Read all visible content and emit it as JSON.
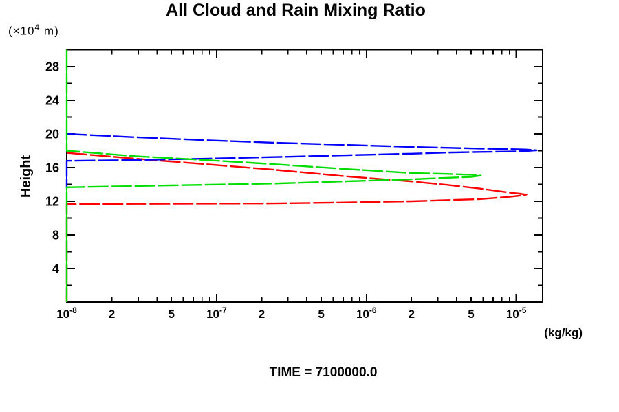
{
  "page": {
    "background": "#ffffff"
  },
  "chart_data": {
    "type": "line",
    "title": "All Cloud and Rain Mixing Ratio",
    "caption": "TIME = 7100000.0",
    "grid": false,
    "legend": false,
    "x_axis": {
      "scale": "log",
      "min": 1e-08,
      "max": 1.5e-05,
      "unit_label": "(kg/kg)",
      "major_ticks": [
        {
          "value": 1e-08,
          "label_base": "10",
          "label_exp": "-8"
        },
        {
          "value": 1e-07,
          "label_base": "10",
          "label_exp": "-7"
        },
        {
          "value": 1e-06,
          "label_base": "10",
          "label_exp": "-6"
        },
        {
          "value": 1e-05,
          "label_base": "10",
          "label_exp": "-5"
        }
      ],
      "minor_multipliers": [
        2,
        3,
        4,
        5,
        6,
        7,
        8,
        9
      ],
      "labeled_minor_multipliers": [
        2,
        5
      ]
    },
    "y_axis": {
      "label": "Height",
      "unit_prefix": "(×10",
      "unit_exp": "4",
      "unit_suffix": " m)",
      "min": 0,
      "max": 30,
      "tick_step": 2,
      "label_step": 4,
      "tick_labels": [
        4,
        8,
        12,
        16,
        20,
        24,
        28
      ]
    },
    "series": [
      {
        "name": "red-profile",
        "color": "#ff0000",
        "peak_value": 1.17e-05,
        "peak_height": 12.8,
        "points": [
          [
            1e-08,
            17.75
          ],
          [
            2.9e-08,
            17.05
          ],
          [
            8.4e-08,
            16.4
          ],
          [
            2.4e-07,
            15.75
          ],
          [
            6.9e-07,
            15.0
          ],
          [
            2e-06,
            14.35
          ],
          [
            3.4e-06,
            13.95
          ],
          [
            5.7e-06,
            13.5
          ],
          [
            8.7e-06,
            13.05
          ],
          [
            1.05e-05,
            12.9
          ],
          [
            1.17e-05,
            12.78
          ],
          [
            1.05e-05,
            12.65
          ],
          [
            8.7e-06,
            12.5
          ],
          [
            5.7e-06,
            12.25
          ],
          [
            2e-06,
            12.0
          ],
          [
            6.9e-07,
            11.85
          ],
          [
            2.4e-07,
            11.75
          ],
          [
            8.4e-08,
            11.72
          ],
          [
            2.9e-08,
            11.7
          ],
          [
            1e-08,
            11.67
          ],
          [
            1e-08,
            0.0
          ]
        ]
      },
      {
        "name": "blue-profile",
        "color": "#0000ff",
        "peak_value": 1.37e-05,
        "peak_height": 18.05,
        "points": [
          [
            1e-08,
            20.0
          ],
          [
            2.9e-08,
            19.6
          ],
          [
            8.4e-08,
            19.25
          ],
          [
            2.4e-07,
            18.95
          ],
          [
            6.9e-07,
            18.7
          ],
          [
            2e-06,
            18.45
          ],
          [
            3.4e-06,
            18.35
          ],
          [
            5.7e-06,
            18.25
          ],
          [
            8.7e-06,
            18.2
          ],
          [
            1.15e-05,
            18.15
          ],
          [
            1.37e-05,
            18.05
          ],
          [
            1.15e-05,
            17.95
          ],
          [
            8.7e-06,
            17.9
          ],
          [
            5.7e-06,
            17.85
          ],
          [
            3.4e-06,
            17.78
          ],
          [
            2e-06,
            17.65
          ],
          [
            6.9e-07,
            17.45
          ],
          [
            2.4e-07,
            17.25
          ],
          [
            8.4e-08,
            17.05
          ],
          [
            2.9e-08,
            16.9
          ],
          [
            1e-08,
            16.8
          ],
          [
            1e-08,
            13.6
          ]
        ]
      },
      {
        "name": "green-profile",
        "color": "#00dd00",
        "peak_value": 5.8e-06,
        "peak_height": 15.05,
        "points": [
          [
            1e-08,
            30.0
          ],
          [
            1e-08,
            18.0
          ],
          [
            2.9e-08,
            17.35
          ],
          [
            8.4e-08,
            16.9
          ],
          [
            2.4e-07,
            16.4
          ],
          [
            6.9e-07,
            15.85
          ],
          [
            2e-06,
            15.35
          ],
          [
            3.4e-06,
            15.25
          ],
          [
            5e-06,
            15.15
          ],
          [
            5.8e-06,
            15.05
          ],
          [
            5e-06,
            14.9
          ],
          [
            3.4e-06,
            14.78
          ],
          [
            2e-06,
            14.6
          ],
          [
            6.9e-07,
            14.35
          ],
          [
            2.4e-07,
            14.1
          ],
          [
            8.4e-08,
            13.95
          ],
          [
            2.9e-08,
            13.8
          ],
          [
            1e-08,
            13.65
          ],
          [
            1e-08,
            0.0
          ]
        ]
      }
    ]
  }
}
